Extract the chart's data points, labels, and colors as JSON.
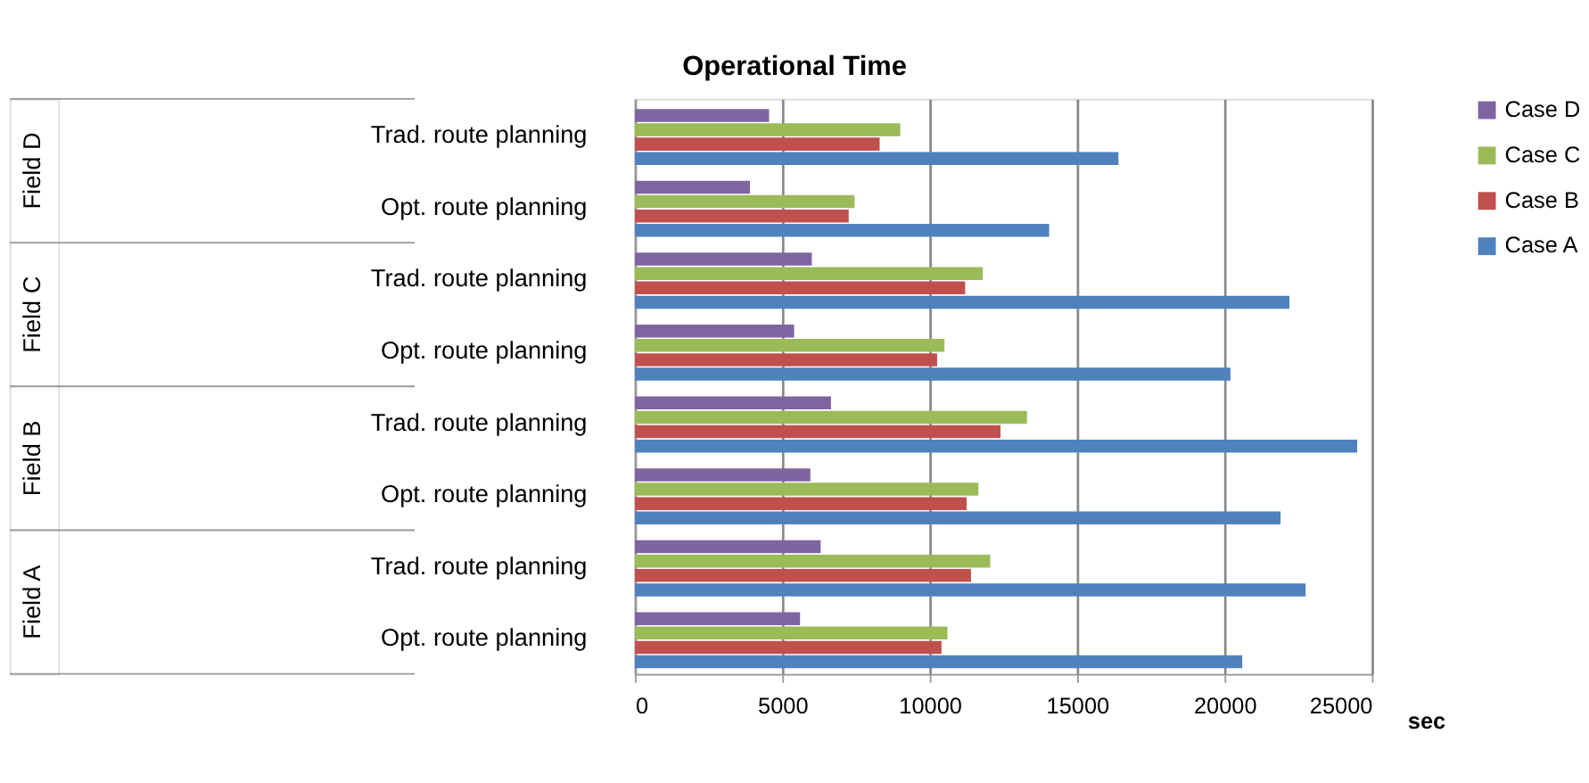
{
  "chart_data": {
    "type": "bar",
    "orientation": "horizontal",
    "title": "Operational Time",
    "xlabel": "sec",
    "categories": [
      "Trad. route planning",
      "Opt. route planning",
      "Trad. route planning",
      "Opt. route planning",
      "Trad. route planning",
      "Opt. route planning",
      "Trad. route planning",
      "Opt. route planning"
    ],
    "annotations": [
      "Field D",
      "Field C",
      "Field B",
      "Field A"
    ],
    "series": [
      {
        "name": "Case D",
        "color": "#8064a2",
        "values": [
          4550,
          3900,
          6000,
          5400,
          6650,
          5950,
          6300,
          5600
        ]
      },
      {
        "name": "Case C",
        "color": "#9bbb59",
        "values": [
          9000,
          7450,
          11800,
          10500,
          13300,
          11650,
          12050,
          10600
        ]
      },
      {
        "name": "Case B",
        "color": "#c0504d",
        "values": [
          8300,
          7250,
          11200,
          10250,
          12400,
          11250,
          11400,
          10400
        ]
      },
      {
        "name": "Case A",
        "color": "#4f81bd",
        "values": [
          16400,
          14050,
          22200,
          20200,
          24500,
          21900,
          22750,
          20600
        ]
      }
    ],
    "xlim": [
      0,
      25000
    ],
    "xticks": [
      0,
      5000,
      10000,
      15000,
      20000,
      25000
    ],
    "grid": "x",
    "legend": "right"
  }
}
